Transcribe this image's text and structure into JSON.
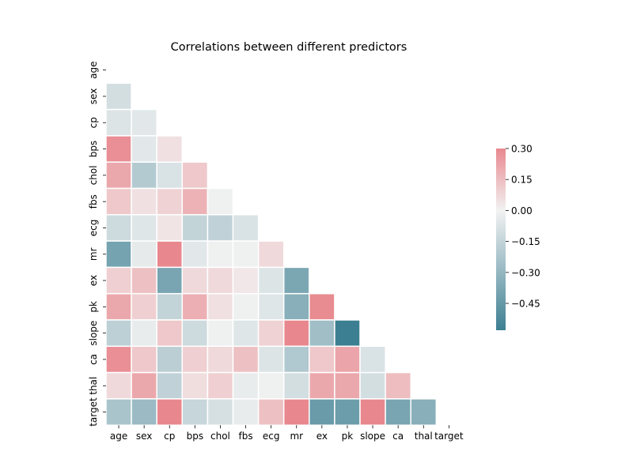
{
  "chart_data": {
    "type": "heatmap",
    "title": "Correlations between different predictors",
    "variables": [
      "age",
      "sex",
      "cp",
      "bps",
      "chol",
      "fbs",
      "ecg",
      "mr",
      "ex",
      "pk",
      "slope",
      "ca",
      "thal",
      "target"
    ],
    "masked": "upper-triangle-and-diagonal",
    "rows": [
      {
        "row": "sex",
        "values": [
          -0.1
        ]
      },
      {
        "row": "cp",
        "values": [
          -0.07,
          -0.05
        ]
      },
      {
        "row": "bps",
        "values": [
          0.28,
          -0.05,
          0.05
        ]
      },
      {
        "row": "chol",
        "values": [
          0.21,
          -0.2,
          -0.08,
          0.12
        ]
      },
      {
        "row": "fbs",
        "values": [
          0.12,
          0.05,
          0.09,
          0.18,
          -0.01
        ]
      },
      {
        "row": "ecg",
        "values": [
          -0.12,
          -0.06,
          0.04,
          -0.15,
          -0.16,
          -0.08
        ]
      },
      {
        "row": "mr",
        "values": [
          -0.4,
          -0.04,
          0.3,
          -0.05,
          -0.01,
          -0.01,
          0.07
        ]
      },
      {
        "row": "ex",
        "values": [
          0.1,
          0.14,
          -0.39,
          0.07,
          0.07,
          0.03,
          -0.07,
          -0.38
        ]
      },
      {
        "row": "pk",
        "values": [
          0.21,
          0.1,
          -0.15,
          0.19,
          0.05,
          -0.01,
          -0.06,
          -0.34,
          0.29
        ]
      },
      {
        "row": "slope",
        "values": [
          -0.17,
          -0.03,
          0.12,
          -0.12,
          -0.01,
          -0.06,
          0.09,
          0.39,
          -0.26,
          -0.58
        ]
      },
      {
        "row": "ca",
        "values": [
          0.28,
          0.12,
          -0.18,
          0.1,
          0.07,
          0.14,
          -0.07,
          -0.21,
          0.12,
          0.22,
          -0.08
        ]
      },
      {
        "row": "thal",
        "values": [
          0.07,
          0.21,
          -0.16,
          0.06,
          0.1,
          -0.03,
          -0.01,
          -0.1,
          0.21,
          0.21,
          -0.1,
          0.15
        ]
      },
      {
        "row": "target",
        "values": [
          -0.23,
          -0.28,
          0.43,
          -0.14,
          -0.09,
          -0.03,
          0.14,
          0.42,
          -0.44,
          -0.43,
          0.35,
          -0.39,
          -0.34
        ]
      }
    ],
    "colorbar": {
      "min": -0.58,
      "max": 0.3,
      "ticks": [
        0.3,
        0.15,
        0.0,
        -0.15,
        -0.3,
        -0.45
      ],
      "tick_labels": [
        "0.30",
        "0.15",
        "0.00",
        "−0.15",
        "−0.30",
        "−0.45"
      ],
      "colors": {
        "negative_end": "#3d7f92",
        "center": "#f2f2f2",
        "positive_end": "#e8888e"
      }
    },
    "grid": false,
    "cell_separator_color": "#ffffff"
  }
}
